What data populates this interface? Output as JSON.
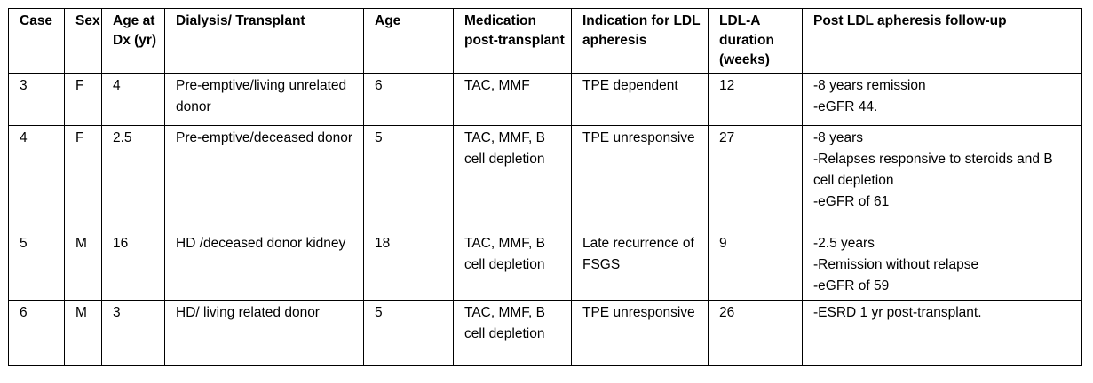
{
  "table": {
    "headers": [
      "Case",
      "Sex",
      "Age at Dx (yr)",
      "Dialysis/ Transplant",
      "Age",
      "Medication post-transplant",
      "Indication for LDL apheresis",
      "LDL-A duration (weeks)",
      "Post LDL apheresis follow-up"
    ],
    "rows": [
      {
        "case": "3",
        "sex": "F",
        "age_at_dx": "4",
        "dialysis_transplant": "Pre-emptive/living unrelated donor",
        "age": "6",
        "medication": "TAC, MMF",
        "indication": "TPE dependent",
        "ldla_duration": "12",
        "followup": [
          "-8 years remission",
          "-eGFR 44."
        ]
      },
      {
        "case": "4",
        "sex": "F",
        "age_at_dx": "2.5",
        "dialysis_transplant": "Pre-emptive/deceased donor",
        "age": "5",
        "medication": "TAC, MMF, B cell depletion",
        "indication": "TPE unresponsive",
        "ldla_duration": "27",
        "followup": [
          "-8 years",
          "-Relapses responsive to steroids and B cell depletion",
          "-eGFR of 61"
        ]
      },
      {
        "case": "5",
        "sex": "M",
        "age_at_dx": "16",
        "dialysis_transplant": "HD /deceased donor kidney",
        "age": "18",
        "medication": "TAC, MMF, B cell depletion",
        "indication": "Late recurrence of FSGS",
        "ldla_duration": "9",
        "followup": [
          "-2.5 years",
          "-Remission without relapse",
          "-eGFR of 59"
        ]
      },
      {
        "case": "6",
        "sex": "M",
        "age_at_dx": "3",
        "dialysis_transplant": "HD/ living related donor",
        "age": "5",
        "medication": "TAC, MMF, B cell depletion",
        "indication": "TPE unresponsive",
        "ldla_duration": "26",
        "followup": [
          "-ESRD 1 yr post-transplant."
        ]
      }
    ]
  }
}
